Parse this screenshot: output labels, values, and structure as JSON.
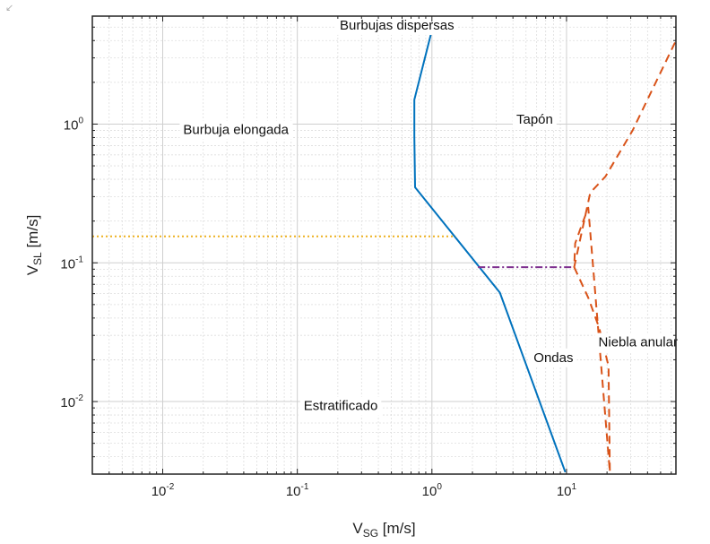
{
  "corner_icon": "resize-arrow-icon",
  "chart_data": {
    "type": "line",
    "x_scale": "log",
    "y_scale": "log",
    "xlim": [
      0.003,
      65
    ],
    "ylim": [
      0.003,
      6
    ],
    "grid": true,
    "xlabel": {
      "main": "V",
      "sub": "SG",
      "unit": " [m/s]"
    },
    "ylabel": {
      "main": "V",
      "sub": "SL",
      "unit": " [m/s]"
    },
    "x_ticks": [
      {
        "value": 0.01,
        "base": "10",
        "exp": "-2"
      },
      {
        "value": 0.1,
        "base": "10",
        "exp": "-1"
      },
      {
        "value": 1,
        "base": "10",
        "exp": "0"
      },
      {
        "value": 10,
        "base": "10",
        "exp": "1"
      }
    ],
    "y_ticks": [
      {
        "value": 0.01,
        "base": "10",
        "exp": "-2"
      },
      {
        "value": 0.1,
        "base": "10",
        "exp": "-1"
      },
      {
        "value": 1,
        "base": "10",
        "exp": "0"
      }
    ],
    "series": [
      {
        "color": "#0072bd",
        "style": "solid",
        "x": [
          0.98,
          0.74,
          0.74,
          0.75,
          3.2,
          9.8
        ],
        "y": [
          4.4,
          1.5,
          0.82,
          0.35,
          0.061,
          0.0031
        ]
      },
      {
        "color": "#7e2f8e",
        "style": "dashdot",
        "x": [
          2.2,
          11.4
        ],
        "y": [
          0.093,
          0.093
        ]
      },
      {
        "color": "#edb120",
        "style": "dotted",
        "x": [
          0.003,
          1.5
        ],
        "y": [
          0.155,
          0.155
        ]
      },
      {
        "color": "#d95319",
        "style": "dashed",
        "x": [
          11.4,
          14.5,
          17.5,
          20.5,
          21.0,
          14.5,
          12.8,
          11.6,
          11.4,
          15.0,
          19.5,
          31.0,
          65.0
        ],
        "y": [
          0.093,
          0.056,
          0.034,
          0.018,
          0.0031,
          0.25,
          0.18,
          0.138,
          0.093,
          0.32,
          0.42,
          0.9,
          4.0
        ]
      }
    ],
    "annotations": [
      {
        "text": "Burbujas dispersas",
        "x": 0.55,
        "y": 5.1
      },
      {
        "text": "Burbuja elongada",
        "x": 0.035,
        "y": 0.9
      },
      {
        "text": "Tapón",
        "x": 5.8,
        "y": 1.07
      },
      {
        "text": "Ondas",
        "x": 8.0,
        "y": 0.0205
      },
      {
        "text": "Niebla anular",
        "x": 34.0,
        "y": 0.0265
      },
      {
        "text": "Estratificado",
        "x": 0.21,
        "y": 0.0092
      }
    ]
  }
}
